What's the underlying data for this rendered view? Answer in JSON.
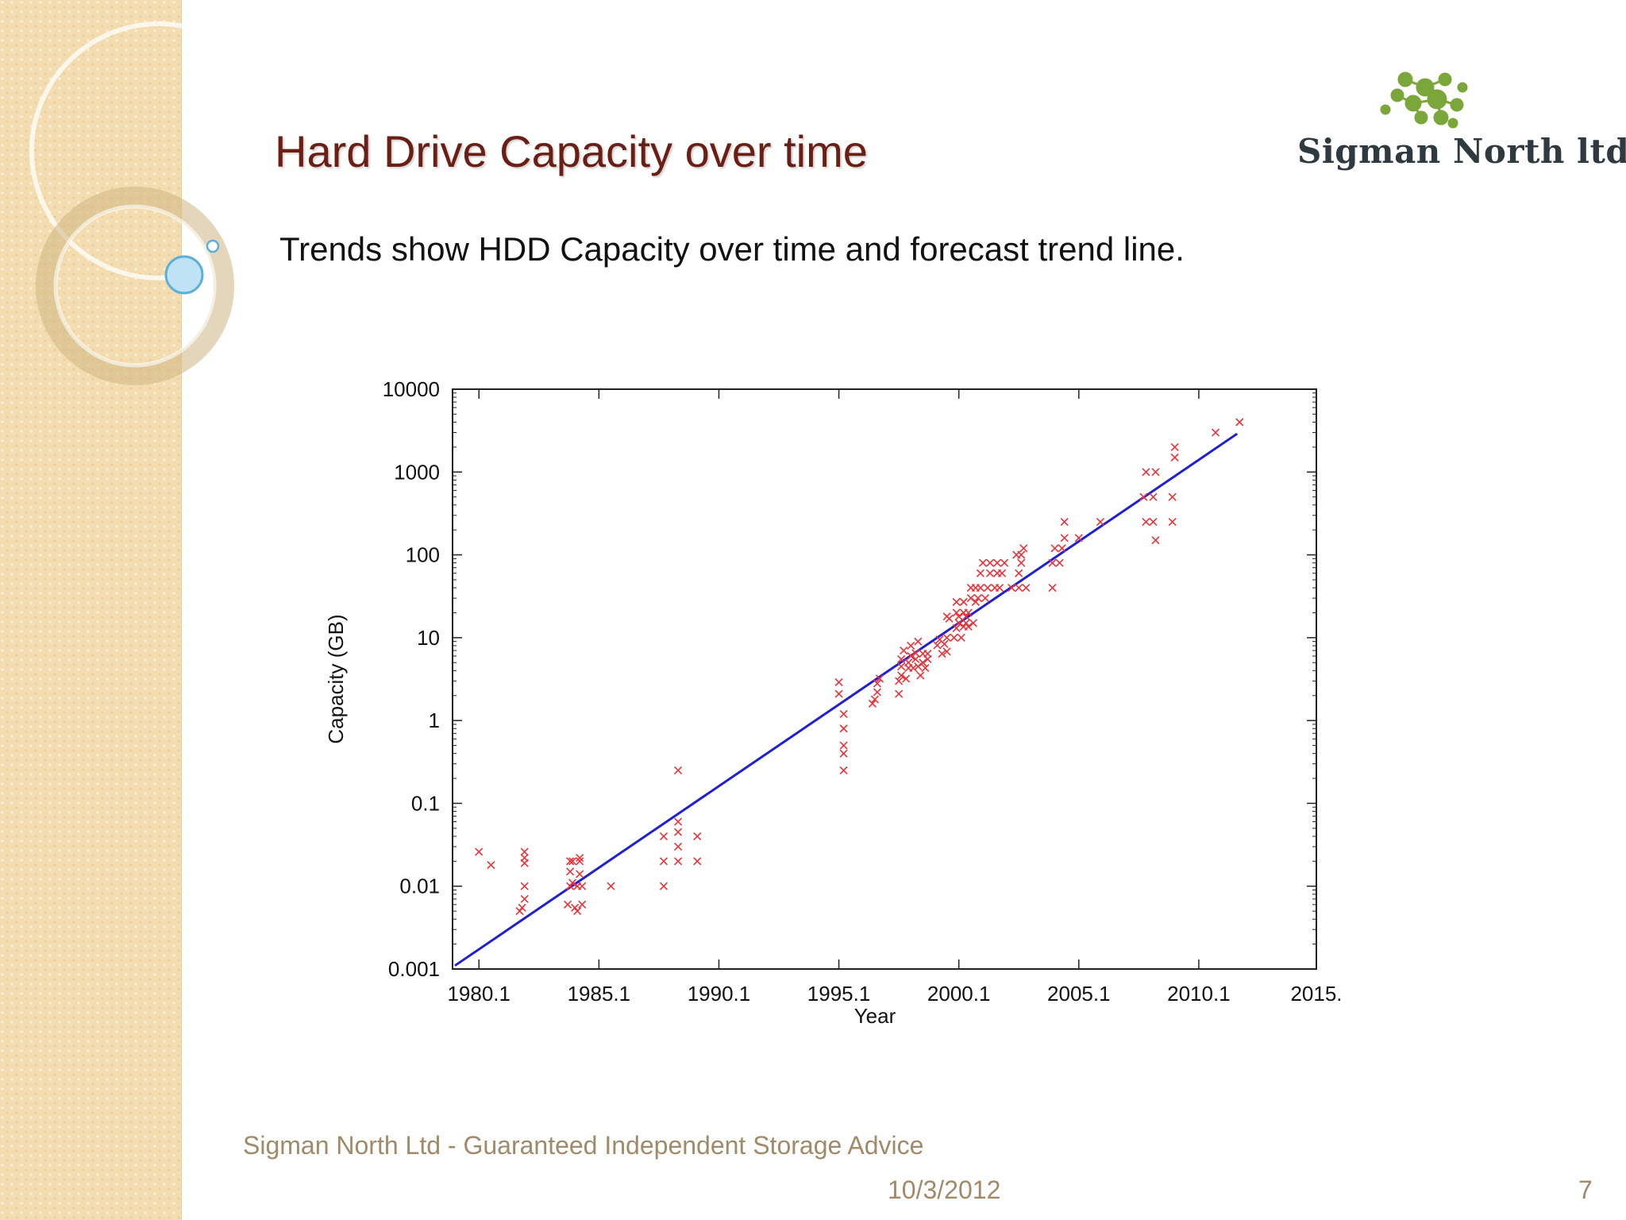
{
  "slide": {
    "title": "Hard Drive Capacity over time",
    "subtitle": "Trends show HDD Capacity over time and forecast trend line.",
    "logo_text": "Sigman North ltd",
    "footer_text": "Sigman North Ltd - Guaranteed Independent Storage Advice",
    "date": "10/3/2012",
    "page_number": "7"
  },
  "colors": {
    "title": "#6b1f14",
    "trend_line": "#1f1fd6",
    "points": "#e8333a",
    "logo_green": "#7aa63a",
    "sidebar": "#f3ddb0",
    "footer": "#a08a6a"
  },
  "chart_data": {
    "type": "scatter",
    "title": "",
    "xlabel": "Year",
    "ylabel": "Capacity (GB)",
    "xlim": [
      1979,
      2015
    ],
    "ylim": [
      0.001,
      10000
    ],
    "y_scale": "log",
    "x_ticks": [
      1980.1,
      1985.1,
      1990.1,
      1995.1,
      2000.1,
      2005.1,
      2010.1,
      2015
    ],
    "x_tick_labels": [
      "1980.1",
      "1985.1",
      "1990.1",
      "1995.1",
      "2000.1",
      "2005.1",
      "2010.1",
      "2015."
    ],
    "y_ticks": [
      0.001,
      0.01,
      0.1,
      1,
      10,
      100,
      1000,
      10000
    ],
    "y_tick_labels": [
      "0.001",
      "0.01",
      "0.1",
      "1",
      "10",
      "100",
      "1000",
      "10000"
    ],
    "grid": false,
    "series": [
      {
        "name": "",
        "kind": "points",
        "marker": "x",
        "points": [
          [
            1980.1,
            0.026
          ],
          [
            1980.6,
            0.018
          ],
          [
            1981.8,
            0.005
          ],
          [
            1981.9,
            0.0055
          ],
          [
            1982.0,
            0.007
          ],
          [
            1982.0,
            0.01
          ],
          [
            1982.0,
            0.019
          ],
          [
            1982.0,
            0.022
          ],
          [
            1982.0,
            0.026
          ],
          [
            1983.8,
            0.006
          ],
          [
            1983.9,
            0.01
          ],
          [
            1983.9,
            0.015
          ],
          [
            1983.9,
            0.02
          ],
          [
            1984.0,
            0.011
          ],
          [
            1984.0,
            0.02
          ],
          [
            1984.1,
            0.0055
          ],
          [
            1984.2,
            0.005
          ],
          [
            1984.2,
            0.01
          ],
          [
            1984.3,
            0.014
          ],
          [
            1984.3,
            0.02
          ],
          [
            1984.3,
            0.022
          ],
          [
            1984.4,
            0.006
          ],
          [
            1984.4,
            0.01
          ],
          [
            1985.6,
            0.01
          ],
          [
            1987.8,
            0.01
          ],
          [
            1987.8,
            0.02
          ],
          [
            1987.8,
            0.04
          ],
          [
            1988.4,
            0.02
          ],
          [
            1988.4,
            0.03
          ],
          [
            1988.4,
            0.045
          ],
          [
            1988.4,
            0.06
          ],
          [
            1988.4,
            0.25
          ],
          [
            1989.2,
            0.02
          ],
          [
            1989.2,
            0.04
          ],
          [
            1995.1,
            2.1
          ],
          [
            1995.1,
            2.9
          ],
          [
            1995.3,
            0.25
          ],
          [
            1995.3,
            0.4
          ],
          [
            1995.3,
            0.5
          ],
          [
            1995.3,
            0.8
          ],
          [
            1995.3,
            1.2
          ],
          [
            1996.5,
            1.6
          ],
          [
            1996.6,
            1.8
          ],
          [
            1996.7,
            2.2
          ],
          [
            1996.7,
            2.8
          ],
          [
            1996.8,
            3.2
          ],
          [
            1997.6,
            2.1
          ],
          [
            1997.6,
            3
          ],
          [
            1997.7,
            3.5
          ],
          [
            1997.7,
            4.5
          ],
          [
            1997.7,
            5.5
          ],
          [
            1997.8,
            7
          ],
          [
            1997.9,
            3.2
          ],
          [
            1998.0,
            4.3
          ],
          [
            1998.0,
            5
          ],
          [
            1998.1,
            6
          ],
          [
            1998.1,
            8
          ],
          [
            1998.2,
            4.3
          ],
          [
            1998.3,
            5.5
          ],
          [
            1998.3,
            6.5
          ],
          [
            1998.4,
            4.5
          ],
          [
            1998.4,
            9
          ],
          [
            1998.5,
            3.5
          ],
          [
            1998.6,
            5
          ],
          [
            1998.6,
            6.4
          ],
          [
            1998.7,
            4.3
          ],
          [
            1998.8,
            5.5
          ],
          [
            1998.8,
            6.4
          ],
          [
            1999.2,
            8.1
          ],
          [
            1999.3,
            9.5
          ],
          [
            1999.4,
            6.4
          ],
          [
            1999.5,
            8.4
          ],
          [
            1999.6,
            6.8
          ],
          [
            1999.6,
            10
          ],
          [
            1999.6,
            18
          ],
          [
            1999.7,
            17
          ],
          [
            1999.9,
            10
          ],
          [
            2000.0,
            13
          ],
          [
            2000.0,
            20
          ],
          [
            2000.0,
            27
          ],
          [
            2000.1,
            15
          ],
          [
            2000.1,
            18
          ],
          [
            2000.2,
            10
          ],
          [
            2000.3,
            13.6
          ],
          [
            2000.3,
            20
          ],
          [
            2000.3,
            27
          ],
          [
            2000.4,
            15
          ],
          [
            2000.4,
            18
          ],
          [
            2000.5,
            13.6
          ],
          [
            2000.5,
            20
          ],
          [
            2000.6,
            30
          ],
          [
            2000.6,
            40
          ],
          [
            2000.7,
            15
          ],
          [
            2000.8,
            27
          ],
          [
            2000.8,
            40
          ],
          [
            2000.9,
            30
          ],
          [
            2001.0,
            40
          ],
          [
            2001.0,
            60
          ],
          [
            2001.1,
            80
          ],
          [
            2001.2,
            30
          ],
          [
            2001.3,
            40
          ],
          [
            2001.4,
            60
          ],
          [
            2001.4,
            80
          ],
          [
            2001.6,
            40
          ],
          [
            2001.7,
            60
          ],
          [
            2001.7,
            80
          ],
          [
            2001.8,
            40
          ],
          [
            2001.9,
            60
          ],
          [
            2002.0,
            80
          ],
          [
            2002.3,
            40
          ],
          [
            2002.5,
            100
          ],
          [
            2002.6,
            40
          ],
          [
            2002.6,
            60
          ],
          [
            2002.7,
            80
          ],
          [
            2002.7,
            100
          ],
          [
            2002.8,
            120
          ],
          [
            2002.9,
            40
          ],
          [
            2004.0,
            40
          ],
          [
            2004.0,
            80
          ],
          [
            2004.1,
            120
          ],
          [
            2004.3,
            80
          ],
          [
            2004.4,
            120
          ],
          [
            2004.5,
            160
          ],
          [
            2004.5,
            250
          ],
          [
            2005.1,
            160
          ],
          [
            2006.0,
            250
          ],
          [
            2007.8,
            500
          ],
          [
            2007.9,
            250
          ],
          [
            2007.9,
            1000
          ],
          [
            2008.2,
            250
          ],
          [
            2008.2,
            500
          ],
          [
            2008.3,
            1000
          ],
          [
            2008.3,
            150
          ],
          [
            2009.0,
            250
          ],
          [
            2009.0,
            500
          ],
          [
            2009.1,
            1500
          ],
          [
            2009.1,
            2000
          ],
          [
            2010.8,
            3000
          ],
          [
            2011.8,
            4000
          ]
        ]
      },
      {
        "name": "",
        "kind": "trend_line",
        "points": [
          [
            1979.1,
            0.0011
          ],
          [
            2011.7,
            2900
          ]
        ]
      }
    ]
  }
}
